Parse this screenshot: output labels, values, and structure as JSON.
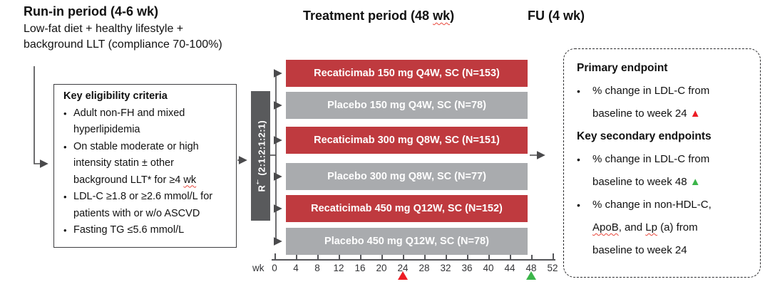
{
  "colors": {
    "drug_bar": "#bf3a3f",
    "placebo_bar": "#a9abae",
    "randomization_box": "#595a5c",
    "primary_marker": "#ed1c24",
    "secondary_marker": "#3bb54a",
    "connector": "#4a4a4c"
  },
  "header": {
    "runin_title": "Run-in period (4-6 wk)",
    "runin_subtitle_lines": [
      "Low-fat diet + healthy lifestyle +",
      "background LLT (compliance 70-100%)"
    ],
    "treatment_title": [
      {
        "t": "Treatment period (48 "
      },
      {
        "t": "wk",
        "squiggle": true
      },
      {
        "t": ")"
      }
    ],
    "fu_title": "FU (4 wk)"
  },
  "eligibility": {
    "title": "Key eligibility criteria",
    "bullets": [
      [
        {
          "t": "Adult non-FH and mixed"
        },
        {
          "br": true
        },
        {
          "t": "hyperlipidemia"
        }
      ],
      [
        {
          "t": "On stable moderate or high"
        },
        {
          "br": true
        },
        {
          "t": "intensity statin ± other"
        },
        {
          "br": true
        },
        {
          "t": "background LLT* for ≥4 "
        },
        {
          "t": "wk",
          "squiggle": true
        }
      ],
      [
        {
          "t": "LDL-C ≥1.8 or ≥2.6 mmol/L for"
        },
        {
          "br": true
        },
        {
          "t": "patients with or w/o ASCVD"
        }
      ],
      [
        {
          "t": "Fasting TG ≤5.6 mmol/L"
        }
      ]
    ]
  },
  "randomization": {
    "label": [
      {
        "t": "R"
      },
      {
        "t": "†",
        "sup": true
      },
      {
        "t": " (2:1:2:1:2:1)"
      }
    ]
  },
  "arms": [
    {
      "label": "Recaticimab 150 mg Q4W, SC (N=153)",
      "type": "drug"
    },
    {
      "label": "Placebo 150 mg Q4W, SC (N=78)",
      "type": "placebo"
    },
    {
      "label": "Recaticimab 300 mg Q8W, SC (N=151)",
      "type": "drug"
    },
    {
      "label": "Placebo 300 mg Q8W, SC (N=77)",
      "type": "placebo"
    },
    {
      "label": "Recaticimab 450 mg Q12W, SC (N=152)",
      "type": "drug"
    },
    {
      "label": "Placebo 450 mg Q12W, SC (N=78)",
      "type": "placebo"
    }
  ],
  "axis": {
    "unit": "wk",
    "tick_labels": [
      "0",
      "4",
      "8",
      "12",
      "16",
      "20",
      "24",
      "28",
      "32",
      "36",
      "40",
      "44",
      "48",
      "52"
    ],
    "markers": [
      {
        "at_label": "24",
        "color": "#ed1c24"
      },
      {
        "at_label": "48",
        "color": "#3bb54a"
      }
    ]
  },
  "endpoints": {
    "sections": [
      {
        "title": "Primary endpoint",
        "bullets": [
          [
            {
              "t": "% change in LDL-C from"
            },
            {
              "br": true
            },
            {
              "t": "baseline to week 24 "
            },
            {
              "t": "▲",
              "color": "#ed1c24"
            }
          ]
        ]
      },
      {
        "title": "Key secondary endpoints",
        "bullets": [
          [
            {
              "t": "% change in LDL-C from"
            },
            {
              "br": true
            },
            {
              "t": "baseline to week 48 "
            },
            {
              "t": "▲",
              "color": "#3bb54a"
            }
          ],
          [
            {
              "t": "% change in non-HDL-C,"
            },
            {
              "br": true
            },
            {
              "t": "ApoB",
              "squiggle": true
            },
            {
              "t": ", and "
            },
            {
              "t": "Lp",
              "squiggle": true
            },
            {
              "t": " (a) from"
            },
            {
              "br": true
            },
            {
              "t": "baseline to week 24"
            }
          ]
        ]
      }
    ]
  }
}
